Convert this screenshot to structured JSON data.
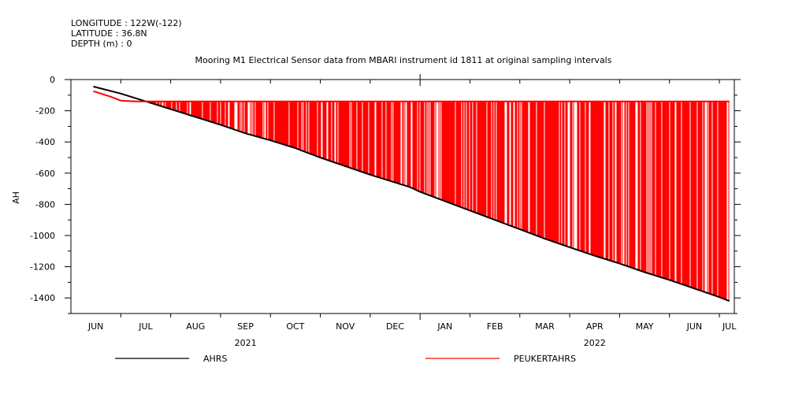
{
  "header": {
    "longitude": "LONGITUDE : 122W(-122)",
    "latitude": "LATITUDE : 36.8N",
    "depth": "DEPTH (m) : 0"
  },
  "chart_data": {
    "type": "line",
    "title": "Mooring M1 Electrical Sensor data from MBARI instrument id 1811 at original sampling intervals",
    "xlabel": "",
    "ylabel": "AH",
    "ylim": [
      -1500,
      0
    ],
    "xlim": [
      0,
      13.3
    ],
    "y_ticks": [
      0,
      -200,
      -400,
      -600,
      -800,
      -1000,
      -1200,
      -1400
    ],
    "y_tick_labels": [
      "0",
      "-200",
      "-400",
      "-600",
      "-800",
      "-1000",
      "-1200",
      "-1400"
    ],
    "x_ticks": [
      0.5,
      1.5,
      2.5,
      3.5,
      4.5,
      5.5,
      6.5,
      7.5,
      8.5,
      9.5,
      10.5,
      11.5,
      12.5,
      13.2
    ],
    "x_tick_labels": [
      "JUN",
      "JUL",
      "AUG",
      "SEP",
      "OCT",
      "NOV",
      "DEC",
      "JAN",
      "FEB",
      "MAR",
      "APR",
      "MAY",
      "JUN",
      "JUL"
    ],
    "year_labels": [
      {
        "label": "2021",
        "x": 3.5
      },
      {
        "label": "2022",
        "x": 10.5
      }
    ],
    "grid": false,
    "legend": "bottom",
    "colors": {
      "AHRS": "#000000",
      "PEUKERTAHRS": "#ff0000"
    },
    "series": [
      {
        "name": "AHRS",
        "x": [
          0.45,
          1.0,
          1.5,
          2.0,
          2.5,
          3.0,
          3.5,
          4.0,
          4.5,
          5.0,
          5.5,
          6.0,
          6.4,
          6.6,
          6.8,
          7.0,
          7.5,
          8.0,
          8.5,
          9.0,
          9.5,
          10.0,
          10.5,
          11.0,
          11.5,
          12.0,
          12.5,
          13.0,
          13.2
        ],
        "values": [
          -45,
          -90,
          -140,
          -190,
          -240,
          -290,
          -345,
          -390,
          -440,
          -500,
          -555,
          -610,
          -650,
          -670,
          -690,
          -720,
          -780,
          -840,
          -900,
          -960,
          -1020,
          -1075,
          -1130,
          -1180,
          -1235,
          -1285,
          -1340,
          -1395,
          -1420
        ]
      },
      {
        "name": "PEUKERTAHRS",
        "baseline": -140,
        "x": [
          0.45,
          0.6,
          0.8,
          1.0,
          1.3,
          1.6,
          2.0,
          3.0,
          4.0,
          5.0,
          6.0,
          7.0,
          8.0,
          9.0,
          10.0,
          11.0,
          12.0,
          13.0,
          13.2
        ],
        "values": [
          -75,
          -90,
          -110,
          -135,
          -140,
          -140,
          -140,
          -140,
          -140,
          -140,
          -140,
          -140,
          -140,
          -140,
          -140,
          -140,
          -140,
          -140,
          -140
        ]
      }
    ]
  }
}
